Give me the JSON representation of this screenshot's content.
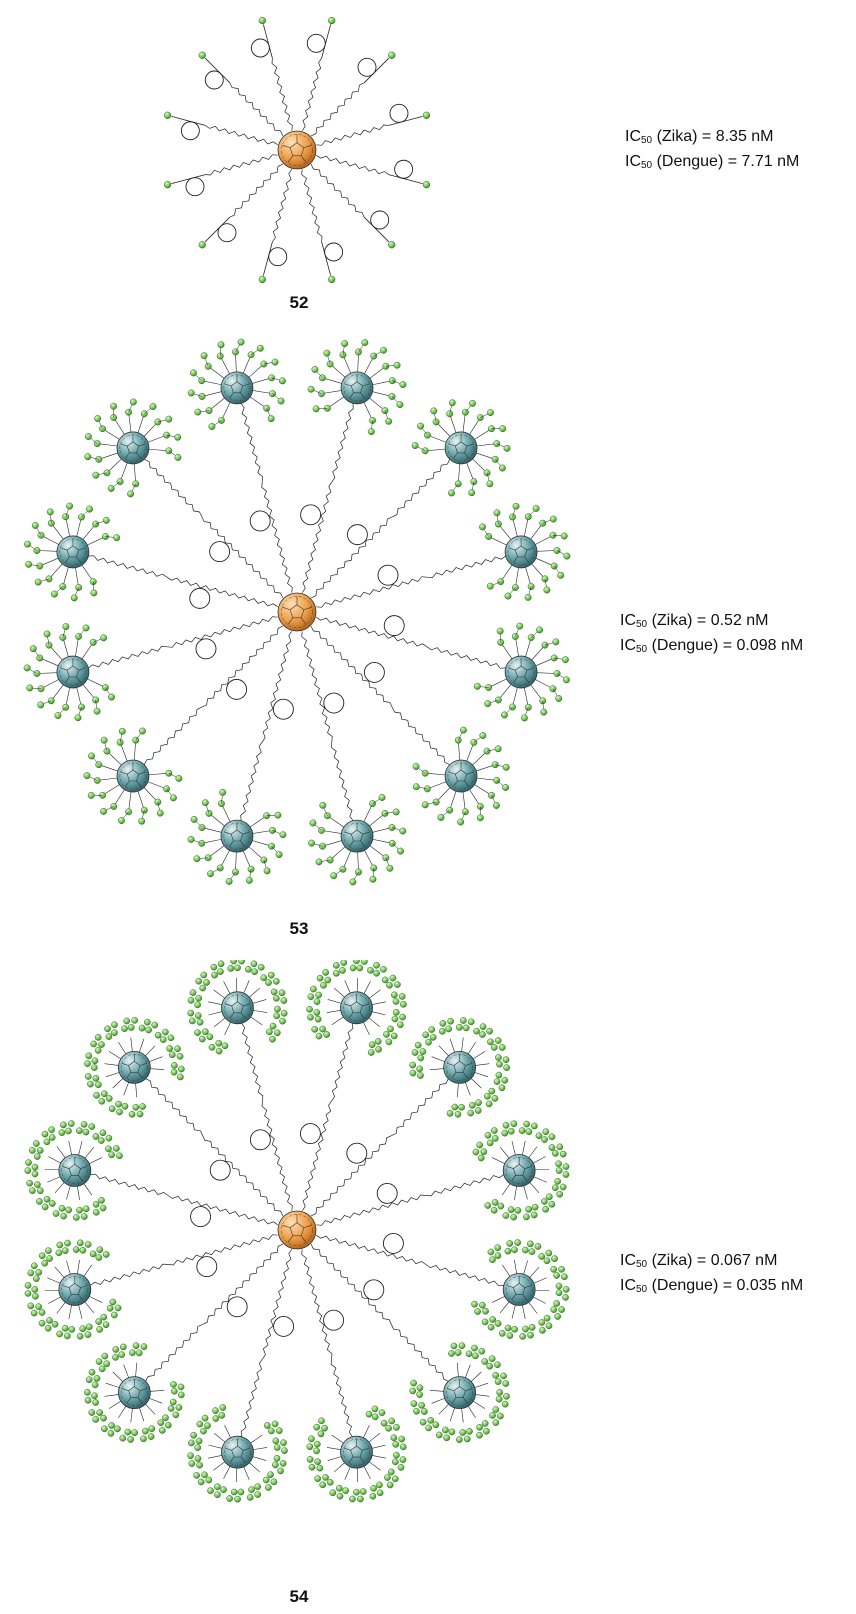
{
  "compounds": [
    {
      "id": "52",
      "ic50_label": "IC",
      "ic50_sub": "50",
      "zika": "(Zika) = 8.35 nM",
      "dengue": "(Dengue) = 7.71 nM",
      "generation": 1
    },
    {
      "id": "53",
      "ic50_label": "IC",
      "ic50_sub": "50",
      "zika": "(Zika) = 0.52 nM",
      "dengue": "(Dengue) = 0.098 nM",
      "generation": 2
    },
    {
      "id": "54",
      "ic50_label": "IC",
      "ic50_sub": "50",
      "zika": "(Zika) = 0.067 nM",
      "dengue": "(Dengue) = 0.035 nM",
      "generation": 3
    }
  ],
  "colors": {
    "core_fullerene": "#f0a04b",
    "peripheral_fullerene": "#6fa8ad",
    "sugar_ball": "#7ccb5a",
    "bond": "#222222"
  }
}
